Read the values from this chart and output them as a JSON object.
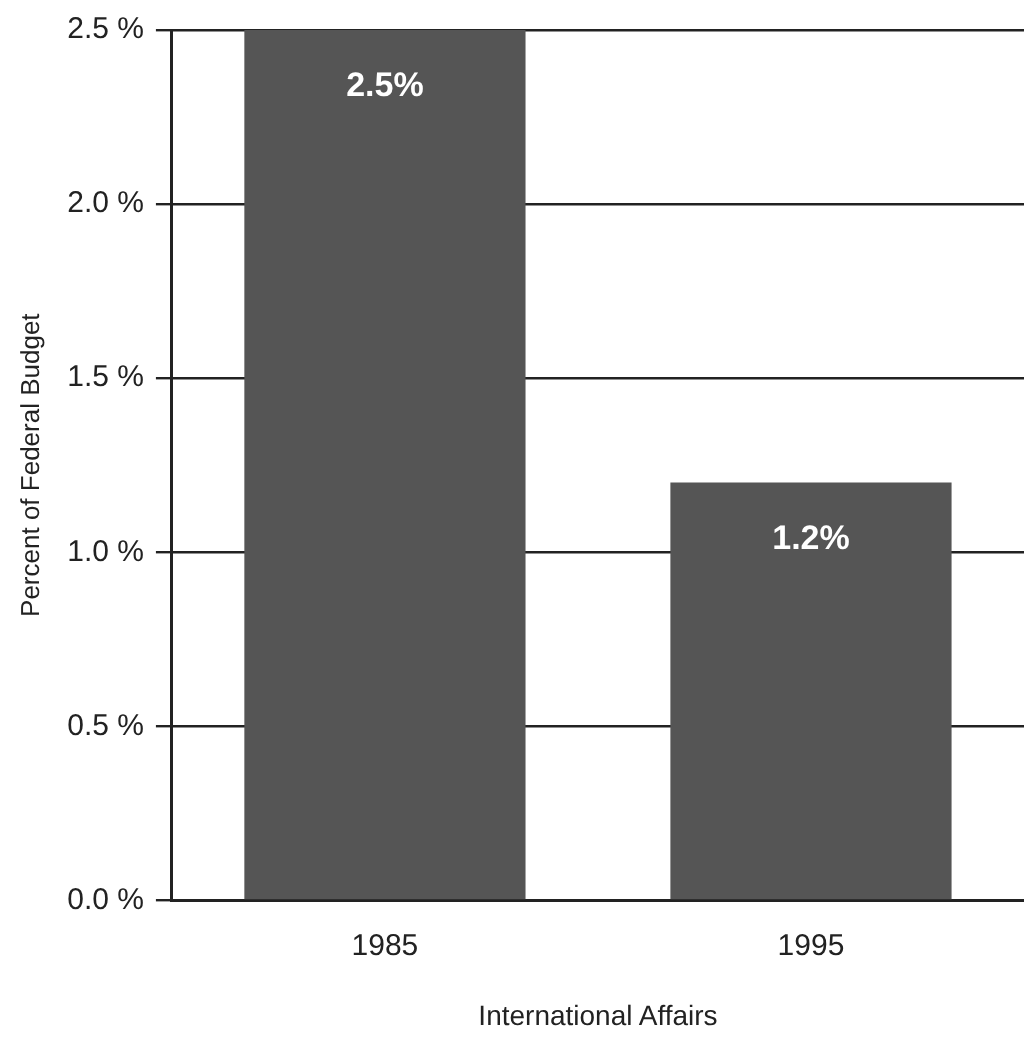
{
  "chart_data": {
    "type": "bar",
    "xlabel": "International Affairs",
    "ylabel": "Percent of Federal Budget",
    "categories": [
      "1985",
      "1995"
    ],
    "series": [
      {
        "color": "#555555",
        "values": [
          2.5,
          1.2
        ],
        "value_labels": [
          "2.5%",
          "1.2%"
        ]
      }
    ],
    "ylim": [
      0,
      2.5
    ],
    "yticks": [
      {
        "value": 0,
        "label": "0.0 %"
      },
      {
        "value": 0.5,
        "label": "0.5 %"
      },
      {
        "value": 1,
        "label": "1.0 %"
      },
      {
        "value": 1.5,
        "label": "1.5 %"
      },
      {
        "value": 2,
        "label": "2.0 %"
      },
      {
        "value": 2.5,
        "label": "2.5 %"
      }
    ],
    "grid": "y",
    "legend": false
  }
}
